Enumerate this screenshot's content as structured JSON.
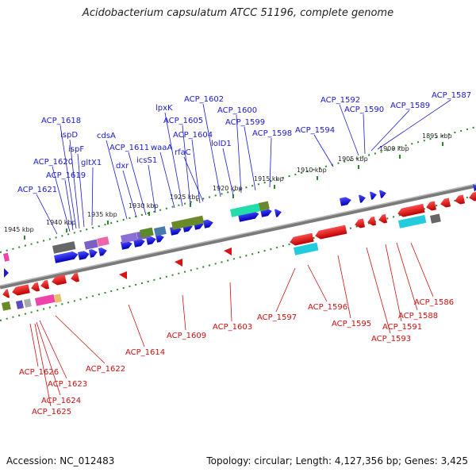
{
  "title": "Acidobacterium capsulatum ATCC 51196, complete genome",
  "footer": {
    "accession": "Accession: NC_012483",
    "summary": "Topology: circular; Length: 4,127,356 bp; Genes: 3,425"
  },
  "colors": {
    "forward": "#1a1acc",
    "reverse": "#cc1111",
    "backbone": "#888888"
  },
  "scale_ticks": [
    "1945 kbp",
    "1940 kbp",
    "1935 kbp",
    "1930 kbp",
    "1925 kbp",
    "1920 kbp",
    "1915 kbp",
    "1910 kbp",
    "1905 kbp",
    "1900 kbp",
    "1895 kbp"
  ],
  "top_labels": [
    "ACP_1621",
    "ACP_1620",
    "ACP_1619",
    "ACP_1618",
    "ispD",
    "ispF",
    "gltX1",
    "cdsA",
    "dxr",
    "ACP_1611",
    "icsS1",
    "waaA",
    "lpxK",
    "ACP_1605",
    "ACP_1604",
    "rfaC",
    "ACP_1602",
    "lolD1",
    "ACP_1600",
    "ACP_1599",
    "ACP_1598",
    "ACP_1594",
    "ACP_1592",
    "ACP_1590",
    "ACP_1589",
    "ACP_1587"
  ],
  "bottom_labels": [
    "ACP_1626",
    "ACP_1623",
    "ACP_1624",
    "ACP_1625",
    "ACP_1622",
    "ACP_1614",
    "ACP_1609",
    "ACP_1603",
    "ACP_1597",
    "ACP_1596",
    "ACP_1595",
    "ACP_1593",
    "ACP_1591",
    "ACP_1588",
    "ACP_1586"
  ]
}
